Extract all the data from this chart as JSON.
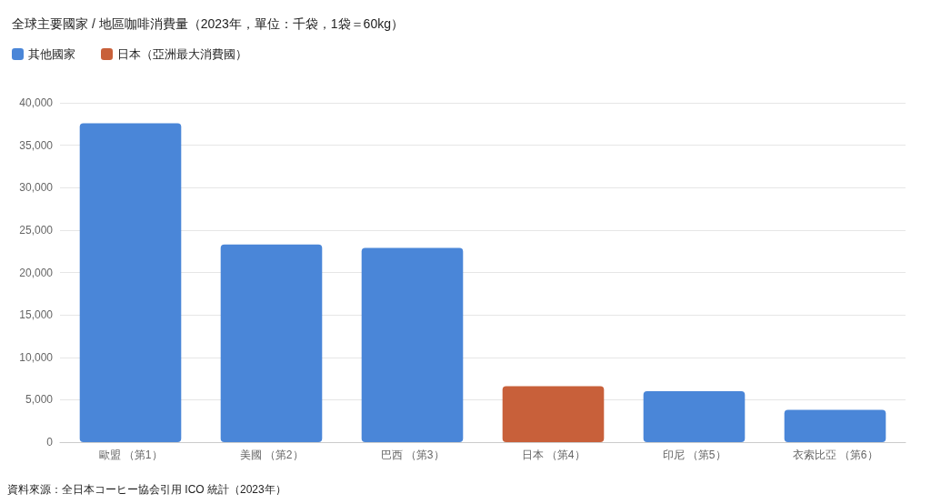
{
  "chart_data": {
    "type": "bar",
    "title": "全球主要國家 / 地區咖啡消費量（2023年，單位：千袋，1袋＝60kg）",
    "categories": [
      "歐盟 （第1）",
      "美國 （第2）",
      "巴西 （第3）",
      "日本 （第4）",
      "印尼 （第5）",
      "衣索比亞 （第6）"
    ],
    "series": [
      {
        "name": "其他國家",
        "color": "#4a86d8",
        "values": [
          37600,
          23300,
          22900,
          null,
          6000,
          3800
        ]
      },
      {
        "name": "日本（亞洲最大消費國）",
        "color": "#c8603a",
        "values": [
          null,
          null,
          null,
          6600,
          null,
          null
        ]
      }
    ],
    "stacked": true,
    "ylim": [
      0,
      40000
    ],
    "yticks": [
      0,
      {
        "value": 5000,
        "label": "5,000"
      },
      {
        "value": 10000,
        "label": "10,000"
      },
      {
        "value": 15000,
        "label": "15,000"
      },
      {
        "value": 20000,
        "label": "20,000"
      },
      {
        "value": 25000,
        "label": "25,000"
      },
      {
        "value": 30000,
        "label": "30,000"
      },
      {
        "value": 35000,
        "label": "35,000"
      },
      {
        "value": 40000,
        "label": "40,000"
      }
    ],
    "grid": "y",
    "legend": "top left",
    "annotations": [
      "資料來源：全日本コーヒー協会引用 ICO 統計（2023年）"
    ]
  }
}
